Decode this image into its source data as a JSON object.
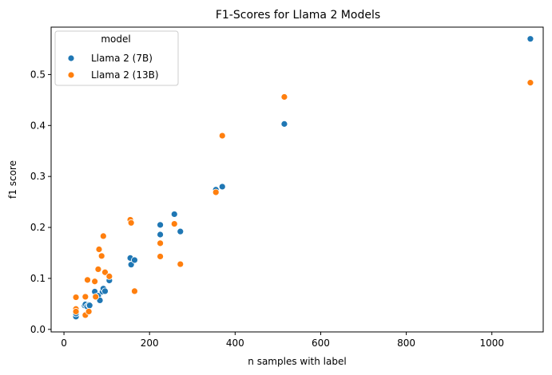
{
  "chart_data": {
    "type": "scatter",
    "title": "F1-Scores for Llama 2 Models",
    "xlabel": "n samples with label",
    "ylabel": "f1 score",
    "xlim": [
      -30,
      1120
    ],
    "ylim": [
      -0.005,
      0.593
    ],
    "xticks": [
      0,
      200,
      400,
      600,
      800,
      1000
    ],
    "yticks": [
      0.0,
      0.1,
      0.2,
      0.3,
      0.4,
      0.5
    ],
    "ytick_labels": [
      "0.0",
      "0.1",
      "0.2",
      "0.3",
      "0.4",
      "0.5"
    ],
    "grid": false,
    "legend": {
      "title": "model",
      "position": "top-left"
    },
    "series": [
      {
        "name": "Llama 2 (7B)",
        "color": "#1f77b4",
        "points": [
          [
            28,
            0.025
          ],
          [
            28,
            0.031
          ],
          [
            48,
            0.047
          ],
          [
            50,
            0.049
          ],
          [
            54,
            0.045
          ],
          [
            58,
            0.048
          ],
          [
            60,
            0.047
          ],
          [
            72,
            0.074
          ],
          [
            80,
            0.066
          ],
          [
            84,
            0.057
          ],
          [
            90,
            0.074
          ],
          [
            92,
            0.08
          ],
          [
            96,
            0.075
          ],
          [
            106,
            0.096
          ],
          [
            155,
            0.14
          ],
          [
            157,
            0.127
          ],
          [
            165,
            0.136
          ],
          [
            225,
            0.205
          ],
          [
            225,
            0.186
          ],
          [
            258,
            0.226
          ],
          [
            272,
            0.192
          ],
          [
            355,
            0.274
          ],
          [
            370,
            0.28
          ],
          [
            515,
            0.403
          ],
          [
            1090,
            0.57
          ]
        ]
      },
      {
        "name": "Llama 2 (13B)",
        "color": "#ff7f0e",
        "points": [
          [
            28,
            0.063
          ],
          [
            28,
            0.04
          ],
          [
            28,
            0.035
          ],
          [
            50,
            0.064
          ],
          [
            50,
            0.028
          ],
          [
            55,
            0.097
          ],
          [
            58,
            0.035
          ],
          [
            72,
            0.094
          ],
          [
            74,
            0.064
          ],
          [
            80,
            0.118
          ],
          [
            82,
            0.157
          ],
          [
            88,
            0.144
          ],
          [
            92,
            0.183
          ],
          [
            96,
            0.112
          ],
          [
            106,
            0.104
          ],
          [
            155,
            0.215
          ],
          [
            157,
            0.209
          ],
          [
            165,
            0.075
          ],
          [
            225,
            0.169
          ],
          [
            225,
            0.143
          ],
          [
            258,
            0.207
          ],
          [
            272,
            0.128
          ],
          [
            355,
            0.269
          ],
          [
            370,
            0.38
          ],
          [
            515,
            0.456
          ],
          [
            1090,
            0.484
          ]
        ]
      }
    ]
  }
}
